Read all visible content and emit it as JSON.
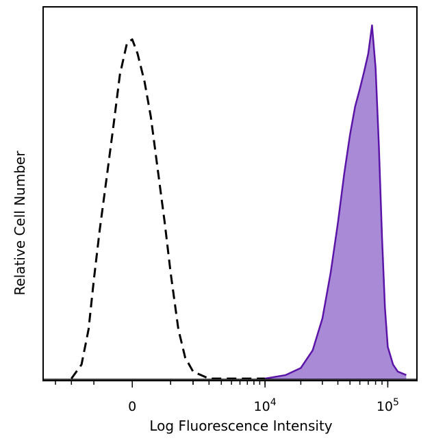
{
  "chart_data": {
    "type": "area",
    "xlabel": "Log Fluorescence Intensity",
    "ylabel": "Relative Cell Number",
    "x_scale": "biexponential",
    "x_tick_labels": [
      {
        "base": "0",
        "exp": "",
        "value": 0
      },
      {
        "base": "10",
        "exp": "4",
        "value": 10000
      },
      {
        "base": "10",
        "exp": "5",
        "value": 100000
      }
    ],
    "ylim": [
      0,
      100
    ],
    "grid": false,
    "legend": "none",
    "series": [
      {
        "style": "dashed-outline",
        "color": "#000000",
        "x": [
          -2000,
          -1500,
          -1200,
          -1000,
          -800,
          -600,
          -400,
          -250,
          -100,
          0,
          100,
          250,
          400,
          600,
          800,
          1000,
          1300,
          1600,
          2000,
          3000,
          5000,
          10000
        ],
        "y": [
          0,
          4,
          14,
          28,
          42,
          56,
          72,
          86,
          95,
          96,
          92,
          84,
          74,
          58,
          44,
          30,
          14,
          6,
          2,
          0,
          0,
          0
        ]
      },
      {
        "style": "filled",
        "color": "#5b14a8",
        "fill": "#a98ad6",
        "x": [
          10000,
          15000,
          20000,
          25000,
          30000,
          35000,
          40000,
          45000,
          50000,
          55000,
          60000,
          65000,
          70000,
          75000,
          80000,
          85000,
          90000,
          95000,
          100000,
          110000,
          120000,
          140000
        ],
        "y": [
          0,
          1,
          3,
          8,
          17,
          30,
          44,
          58,
          69,
          77,
          82,
          87,
          92,
          100,
          88,
          66,
          40,
          20,
          9,
          4,
          2,
          1
        ]
      }
    ]
  }
}
